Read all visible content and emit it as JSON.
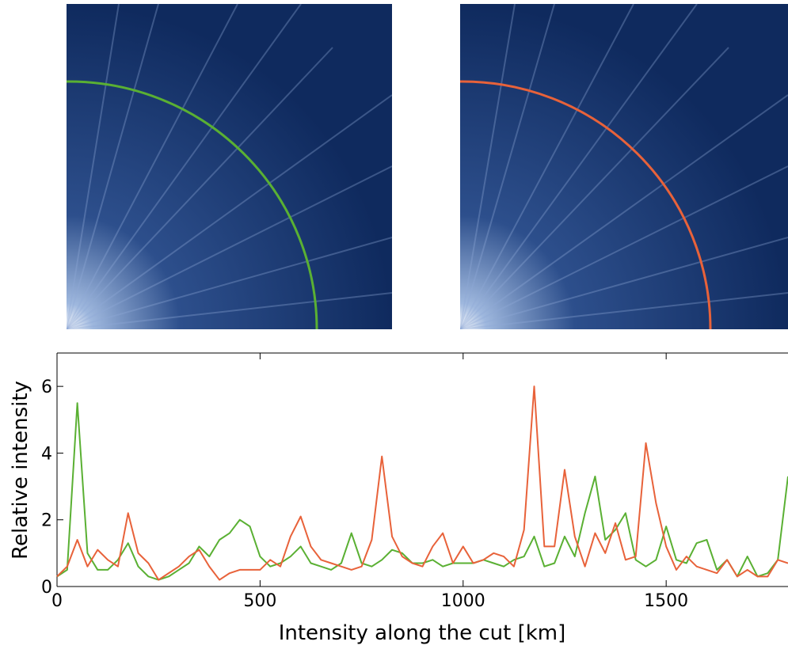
{
  "chart_data": {
    "type": "line",
    "xlabel": "Intensity along the cut [km]",
    "ylabel": "Relative intensity",
    "x": [
      0,
      25,
      50,
      75,
      100,
      125,
      150,
      175,
      200,
      225,
      250,
      275,
      300,
      325,
      350,
      375,
      400,
      425,
      450,
      475,
      500,
      525,
      550,
      575,
      600,
      625,
      650,
      675,
      700,
      725,
      750,
      775,
      800,
      825,
      850,
      875,
      900,
      925,
      950,
      975,
      1000,
      1025,
      1050,
      1075,
      1100,
      1125,
      1150,
      1175,
      1200,
      1225,
      1250,
      1275,
      1300,
      1325,
      1350,
      1375,
      1400,
      1425,
      1450,
      1475,
      1500,
      1525,
      1550,
      1575,
      1600,
      1625,
      1650,
      1675,
      1700,
      1725,
      1750,
      1775,
      1800
    ],
    "series": [
      {
        "color": "#5ab033",
        "values": [
          0.3,
          0.5,
          5.5,
          1.0,
          0.5,
          0.5,
          0.8,
          1.3,
          0.6,
          0.3,
          0.2,
          0.3,
          0.5,
          0.7,
          1.2,
          0.9,
          1.4,
          1.6,
          2.0,
          1.8,
          0.9,
          0.6,
          0.7,
          0.9,
          1.2,
          0.7,
          0.6,
          0.5,
          0.7,
          1.6,
          0.7,
          0.6,
          0.8,
          1.1,
          1.0,
          0.7,
          0.7,
          0.8,
          0.6,
          0.7,
          0.7,
          0.7,
          0.8,
          0.7,
          0.6,
          0.8,
          0.9,
          1.5,
          0.6,
          0.7,
          1.5,
          0.9,
          2.2,
          3.3,
          1.4,
          1.7,
          2.2,
          0.8,
          0.6,
          0.8,
          1.8,
          0.8,
          0.7,
          1.3,
          1.4,
          0.5,
          0.8,
          0.3,
          0.9,
          0.3,
          0.4,
          0.8,
          3.3
        ]
      },
      {
        "color": "#e8623a",
        "values": [
          0.3,
          0.6,
          1.4,
          0.6,
          1.1,
          0.8,
          0.6,
          2.2,
          1.0,
          0.7,
          0.2,
          0.4,
          0.6,
          0.9,
          1.1,
          0.6,
          0.2,
          0.4,
          0.5,
          0.5,
          0.5,
          0.8,
          0.6,
          1.5,
          2.1,
          1.2,
          0.8,
          0.7,
          0.6,
          0.5,
          0.6,
          1.4,
          3.9,
          1.5,
          0.9,
          0.7,
          0.6,
          1.2,
          1.6,
          0.7,
          1.2,
          0.7,
          0.8,
          1.0,
          0.9,
          0.6,
          1.7,
          6.0,
          1.2,
          1.2,
          3.5,
          1.5,
          0.6,
          1.6,
          1.0,
          1.9,
          0.8,
          0.9,
          4.3,
          2.5,
          1.2,
          0.5,
          0.9,
          0.6,
          0.5,
          0.4,
          0.8,
          0.3,
          0.5,
          0.3,
          0.3,
          0.8,
          0.7
        ]
      }
    ],
    "xlim": [
      0,
      1800
    ],
    "xticks": [
      0,
      500,
      1000,
      1500
    ],
    "ylim": [
      0,
      7
    ],
    "yticks": [
      0,
      2,
      4,
      6
    ]
  }
}
